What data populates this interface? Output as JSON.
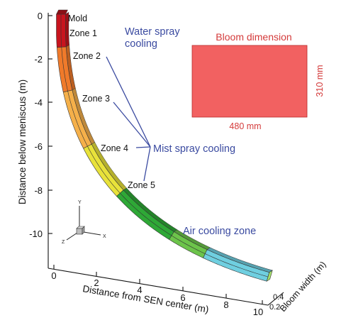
{
  "axes": {
    "y_label": "Distance below meniscus (m)",
    "x_label": "Distance from SEN center (m)",
    "z_label": "Bloom width (m)",
    "y_ticks": [
      "0",
      "-2",
      "-4",
      "-6",
      "-8",
      "-10"
    ],
    "x_ticks": [
      "0",
      "2",
      "4",
      "6",
      "8",
      "10"
    ],
    "z_ticks": [
      "0.2",
      "0.4"
    ]
  },
  "strand": {
    "segments": [
      {
        "label": "Mold",
        "from": 0.0,
        "to": 0.09,
        "color": "#c8141e"
      },
      {
        "label": "Zone 1",
        "from": 0.09,
        "to": 0.21,
        "color": "#f07a2a"
      },
      {
        "label": "Zone 2",
        "from": 0.21,
        "to": 0.38,
        "color": "#f5b04a"
      },
      {
        "label": "Zone 3",
        "from": 0.38,
        "to": 0.55,
        "color": "#e8e23a"
      },
      {
        "label": "Zone 4",
        "from": 0.55,
        "to": 0.74,
        "color": "#2ea836"
      },
      {
        "label": "Zone 5",
        "from": 0.74,
        "to": 0.84,
        "color": "#6cc44a"
      },
      {
        "label": "Air cooling",
        "from": 0.84,
        "to": 1.0,
        "color": "#6fcfe0"
      }
    ]
  },
  "labels": {
    "mold": "Mold",
    "zone1": "Zone 1",
    "zone2": "Zone 2",
    "zone3": "Zone 3",
    "zone4": "Zone 4",
    "zone5": "Zone 5"
  },
  "annotations": {
    "water_spray_line1": "Water spray",
    "water_spray_line2": "cooling",
    "mist_spray": "Mist spray cooling",
    "air_cooling": "Air cooling zone"
  },
  "bloom": {
    "title": "Bloom dimension",
    "width_label": "480 mm",
    "height_label": "310 mm",
    "color": "#f26161"
  },
  "triad": {
    "x": "X",
    "y": "Y",
    "z": "Z"
  }
}
